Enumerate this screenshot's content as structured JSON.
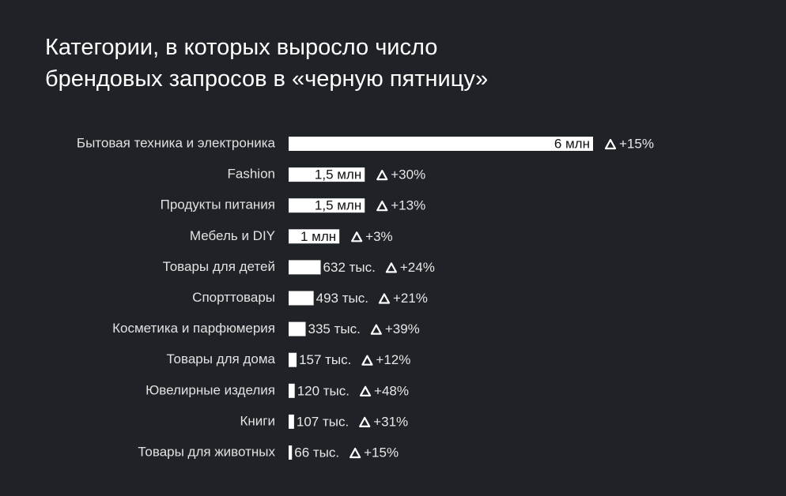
{
  "chart_data": {
    "type": "hbar",
    "title": "Категории, в которых выросло число брендовых запросов в «черную пятницу»",
    "categories": [
      "Бытовая техника и электроника",
      "Fashion",
      "Продукты питания",
      "Мебель и DIY",
      "Товары для детей",
      "Спорттовары",
      "Косметика и парфюмерия",
      "Товары для дома",
      "Ювелирные изделия",
      "Книги",
      "Товары для животных"
    ],
    "values": [
      6000000,
      1500000,
      1500000,
      1000000,
      632000,
      493000,
      335000,
      157000,
      120000,
      107000,
      66000
    ],
    "value_labels": [
      "6 млн",
      "1,5 млн",
      "1,5 млн",
      "1 млн",
      "632 тыс.",
      "493 тыс.",
      "335 тыс.",
      "157 тыс.",
      "120 тыс.",
      "107 тыс.",
      "66 тыс."
    ],
    "color": "#ffffff",
    "xlim": [
      0,
      6000000
    ],
    "growth": {
      "values": [
        15,
        30,
        13,
        3,
        24,
        21,
        39,
        12,
        48,
        31,
        15
      ],
      "value_labels": [
        "+15%",
        "+30%",
        "+13%",
        "+3%",
        "+24%",
        "+21%",
        "+39%",
        "+12%",
        "+48%",
        "+31%",
        "+15%"
      ]
    }
  }
}
